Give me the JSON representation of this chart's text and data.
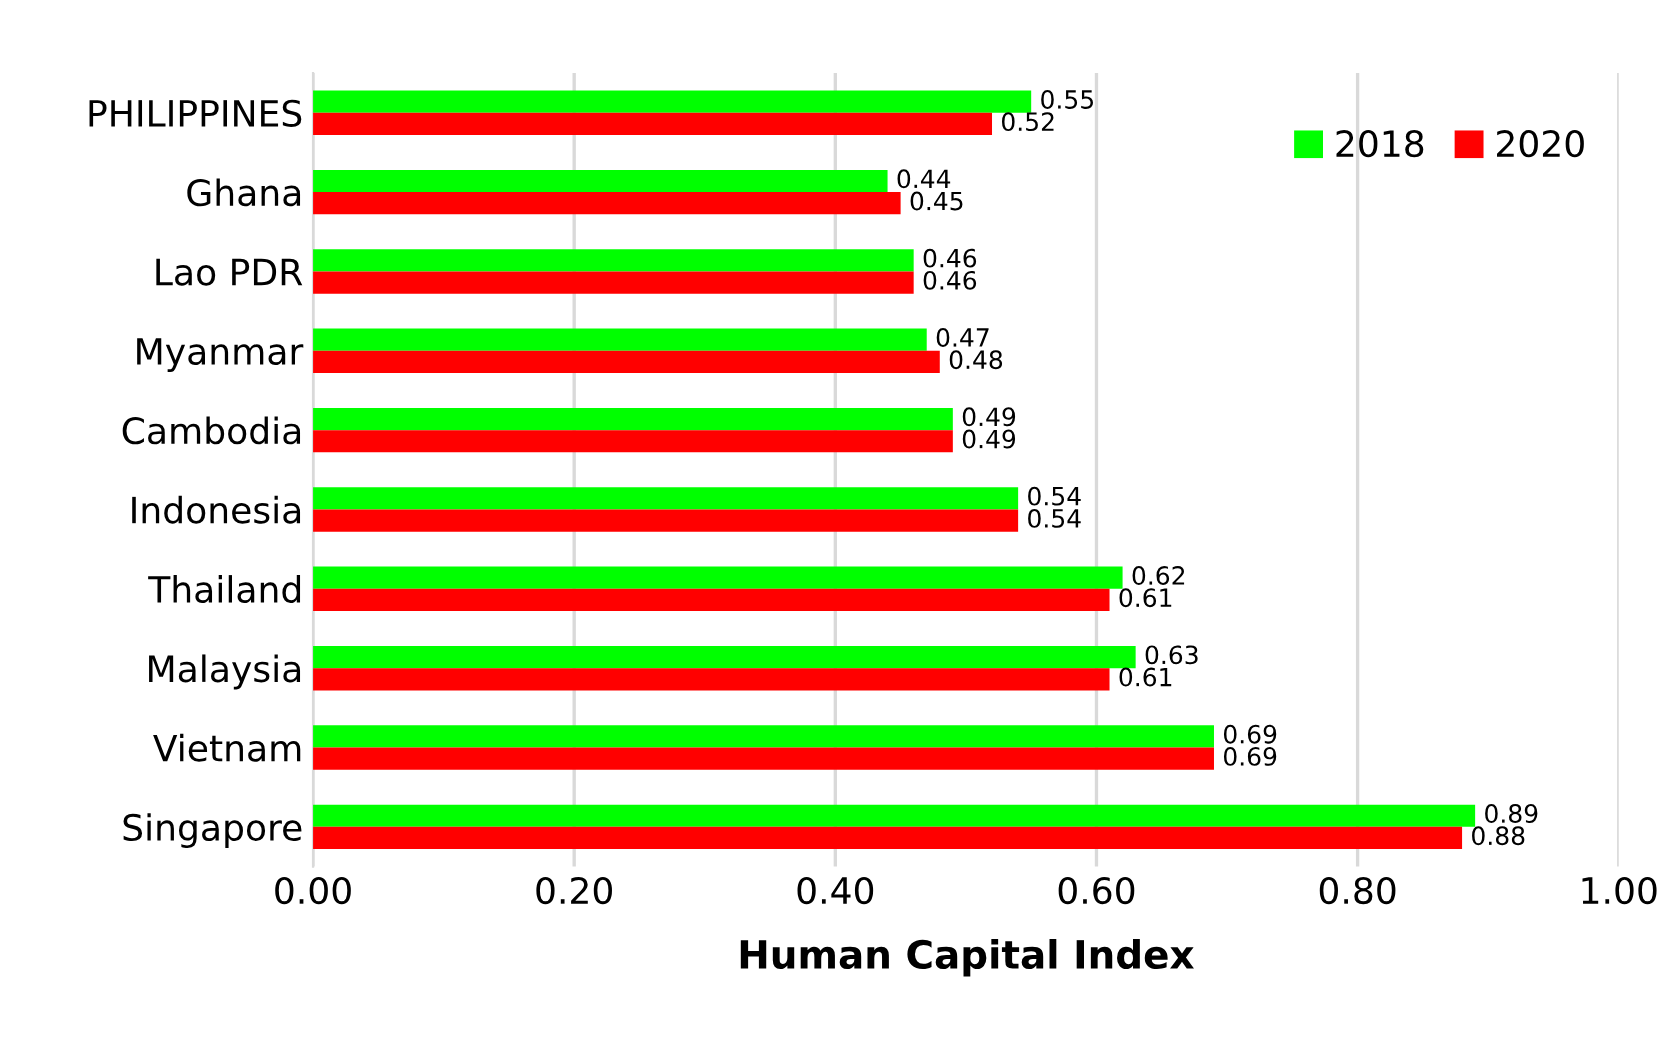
{
  "chart_data": {
    "type": "bar",
    "orientation": "horizontal",
    "xlabel": "Human Capital Index",
    "categories": [
      "PHILIPPINES",
      "Ghana",
      "Lao PDR",
      "Myanmar",
      "Cambodia",
      "Indonesia",
      "Thailand",
      "Malaysia",
      "Vietnam",
      "Singapore"
    ],
    "series": [
      {
        "name": "2018",
        "color": "#00ff00",
        "values": [
          0.55,
          0.44,
          0.46,
          0.47,
          0.49,
          0.54,
          0.62,
          0.63,
          0.69,
          0.89
        ]
      },
      {
        "name": "2020",
        "color": "#ff0000",
        "values": [
          0.52,
          0.45,
          0.46,
          0.48,
          0.49,
          0.54,
          0.61,
          0.61,
          0.69,
          0.88
        ]
      }
    ],
    "xlim": [
      0,
      1
    ],
    "xticks": [
      {
        "value": 0,
        "label": "0.00"
      },
      {
        "value": 0.2,
        "label": "0.20"
      },
      {
        "value": 0.4,
        "label": "0.40"
      },
      {
        "value": 0.6,
        "label": "0.60"
      },
      {
        "value": 0.8,
        "label": "0.80"
      },
      {
        "value": 1,
        "label": "1.00"
      }
    ],
    "grid": "x",
    "legend": "top right",
    "data_labels": true
  }
}
